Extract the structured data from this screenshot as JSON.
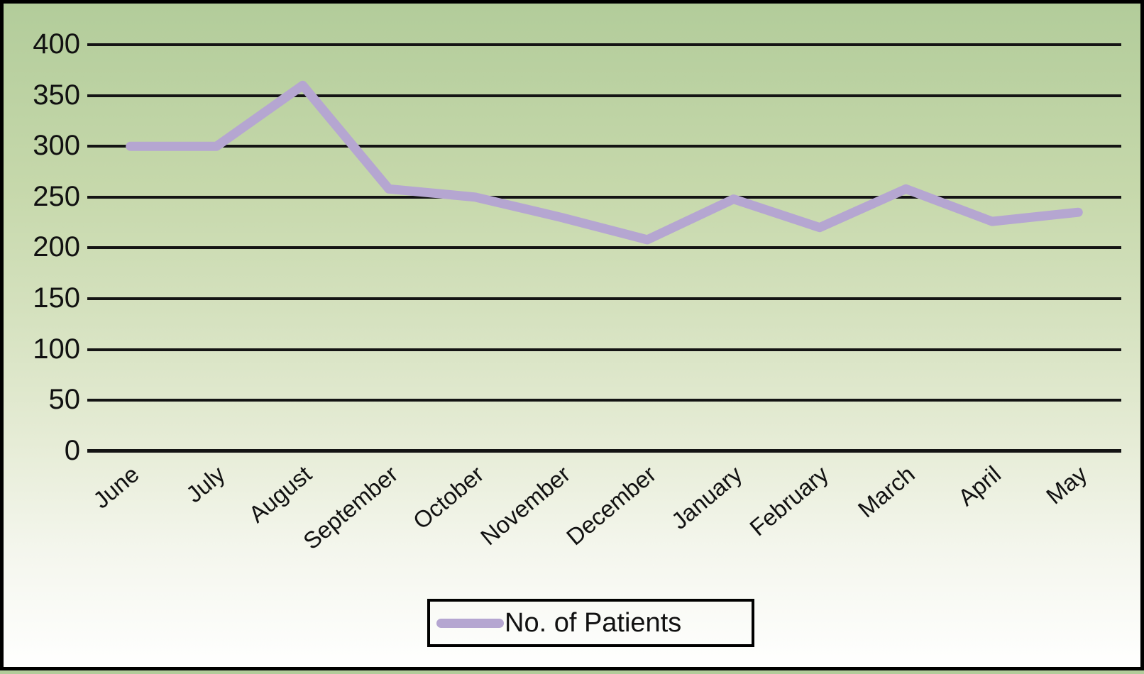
{
  "chart_data": {
    "type": "line",
    "categories": [
      "June",
      "July",
      "August",
      "September",
      "October",
      "November",
      "December",
      "January",
      "February",
      "March",
      "April",
      "May"
    ],
    "series": [
      {
        "name": "No. of Patients",
        "values": [
          300,
          300,
          360,
          258,
          250,
          230,
          208,
          248,
          220,
          258,
          226,
          235
        ]
      }
    ],
    "title": "",
    "xlabel": "",
    "ylabel": "",
    "ylim": [
      0,
      400
    ],
    "y_ticks": [
      400,
      350,
      300,
      250,
      200,
      150,
      100,
      50,
      0
    ],
    "grid": "horizontal",
    "legend_position": "bottom-center"
  },
  "legend": {
    "label": "No. of Patients"
  },
  "colors": {
    "line": "#b5a6d1",
    "grid": "#141414",
    "text": "#111111",
    "border": "#000000",
    "background_top": "#b2cc9a",
    "background_bottom": "#ffffff"
  }
}
